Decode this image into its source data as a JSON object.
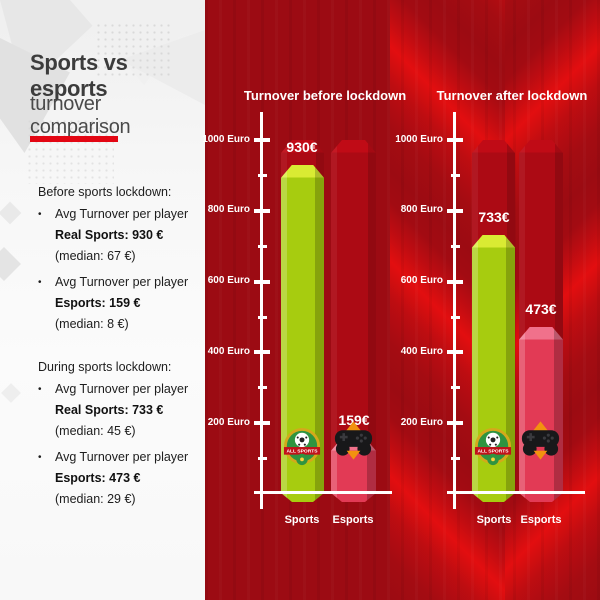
{
  "panel": {
    "title_bold": "Sports vs esports",
    "title_regular": "turnover comparison",
    "sections": [
      {
        "heading": "Before sports lockdown:",
        "bullets": [
          {
            "lead": "Avg Turnover per player",
            "strong": "Real Sports: 930 €",
            "median": "(median: 67 €)"
          },
          {
            "lead": "Avg Turnover per player",
            "strong": "Esports: 159 €",
            "median": "(median: 8 €)"
          }
        ]
      },
      {
        "heading": "During sports lockdown:",
        "bullets": [
          {
            "lead": "Avg Turnover per player",
            "strong": "Real Sports: 733 €",
            "median": "(median: 45 €)"
          },
          {
            "lead": "Avg Turnover per player",
            "strong": "Esports: 473 €",
            "median": "(median: 29 €)"
          }
        ]
      }
    ],
    "bullet_char": "•"
  },
  "chart_data": [
    {
      "type": "bar",
      "title": "Turnover before lockdown",
      "categories": [
        "Sports",
        "Esports"
      ],
      "values": [
        930,
        159
      ],
      "value_labels": [
        "930€",
        "159€"
      ],
      "axis_ticks": [
        "1000 Euro",
        "800 Euro",
        "600 Euro",
        "400 Euro",
        "200 Euro"
      ],
      "xlabel": "",
      "ylabel": "Euro",
      "ylim": [
        0,
        1000
      ],
      "reference_max": 1000,
      "grid": false,
      "legend": "none",
      "bar_colors": [
        "#a7cc0f",
        "#e23a55"
      ]
    },
    {
      "type": "bar",
      "title": "Turnover after lockdown",
      "categories": [
        "Sports",
        "Esports"
      ],
      "values": [
        733,
        473
      ],
      "value_labels": [
        "733€",
        "473€"
      ],
      "axis_ticks": [
        "1000 Euro",
        "800 Euro",
        "600 Euro",
        "400 Euro",
        "200 Euro"
      ],
      "xlabel": "",
      "ylabel": "Euro",
      "ylim": [
        0,
        1000
      ],
      "reference_max": 1000,
      "grid": false,
      "legend": "none",
      "bar_colors": [
        "#a7cc0f",
        "#e23a55"
      ]
    }
  ],
  "icons": {
    "sports_logo_text": "ALL SPORTS",
    "sports": "all-sports-badge-icon",
    "esports": "game-controller-icon"
  },
  "colors": {
    "accent_red": "#e30613",
    "background_red": "#9c0b13",
    "reference_bar_red": "#ac0a14",
    "sports_green": "#a7cc0f",
    "esports_pink": "#e23a55",
    "chart_text": "#ffffff",
    "panel_text": "#1d1d1d"
  }
}
